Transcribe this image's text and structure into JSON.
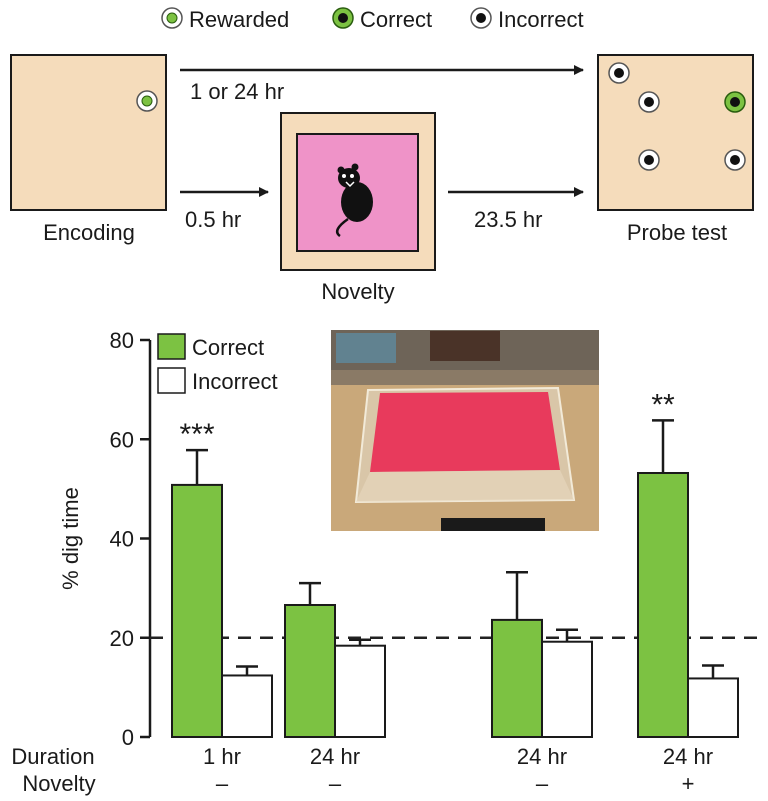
{
  "legend_top": {
    "rewarded": "Rewarded",
    "correct": "Correct",
    "incorrect": "Incorrect"
  },
  "diagram": {
    "encoding_label": "Encoding",
    "novelty_label": "Novelty",
    "probe_label": "Probe test",
    "arrow_long": "1 or 24 hr",
    "arrow_short": "0.5 hr",
    "arrow_after": "23.5 hr"
  },
  "colors": {
    "arena": "#f5dcbb",
    "novelty_inner": "#ef93c8",
    "green": "#7cc242",
    "dashed": "#222222",
    "photo_sand": "#c9a87a",
    "photo_pink": "#e83a5c"
  },
  "chart_data": {
    "type": "bar",
    "ylabel": "% dig time",
    "ylim": [
      0,
      80
    ],
    "yticks": [
      0,
      20,
      40,
      60,
      80
    ],
    "legend": [
      "Correct",
      "Incorrect"
    ],
    "chance_level": 20,
    "row_labels": {
      "duration": "Duration",
      "novelty": "Novelty"
    },
    "groups": [
      {
        "duration": "1 hr",
        "novelty": "–",
        "correct": 50.8,
        "correct_err": 7.0,
        "incorrect": 12.4,
        "incorrect_err": 1.8,
        "sig": "***"
      },
      {
        "duration": "24 hr",
        "novelty": "–",
        "correct": 26.6,
        "correct_err": 4.4,
        "incorrect": 18.4,
        "incorrect_err": 1.2,
        "sig": ""
      },
      {
        "duration": "24 hr",
        "novelty": "–",
        "correct": 23.6,
        "correct_err": 9.6,
        "incorrect": 19.2,
        "incorrect_err": 2.4,
        "sig": ""
      },
      {
        "duration": "24 hr",
        "novelty": "+",
        "correct": 53.2,
        "correct_err": 10.6,
        "incorrect": 11.8,
        "incorrect_err": 2.6,
        "sig": "**"
      }
    ]
  }
}
